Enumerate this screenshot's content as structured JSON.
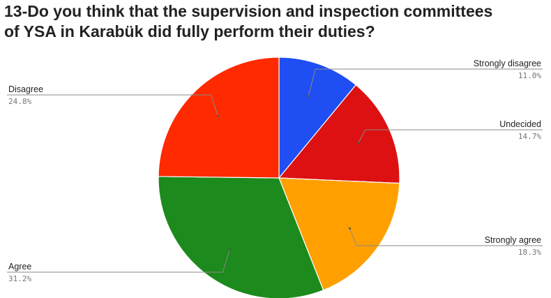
{
  "chart_data": {
    "type": "pie",
    "title_lines": [
      "13-Do you think that the supervision and inspection committees",
      "of YSA in Karabük did fully perform their duties?"
    ],
    "slices": [
      {
        "label": "Strongly disagree",
        "value": 11.0,
        "display": "11.0%",
        "color": "#1f4ef2"
      },
      {
        "label": "Undecided",
        "value": 14.7,
        "display": "14.7%",
        "color": "#dd1111"
      },
      {
        "label": "Strongly agree",
        "value": 18.3,
        "display": "18.3%",
        "color": "#ffa000"
      },
      {
        "label": "Agree",
        "value": 31.2,
        "display": "31.2%",
        "color": "#1c8a1c"
      },
      {
        "label": "Disagree",
        "value": 24.8,
        "display": "24.8%",
        "color": "#ff2a00"
      }
    ],
    "start_angle_deg": 0,
    "direction": "clockwise",
    "legend": "none"
  }
}
